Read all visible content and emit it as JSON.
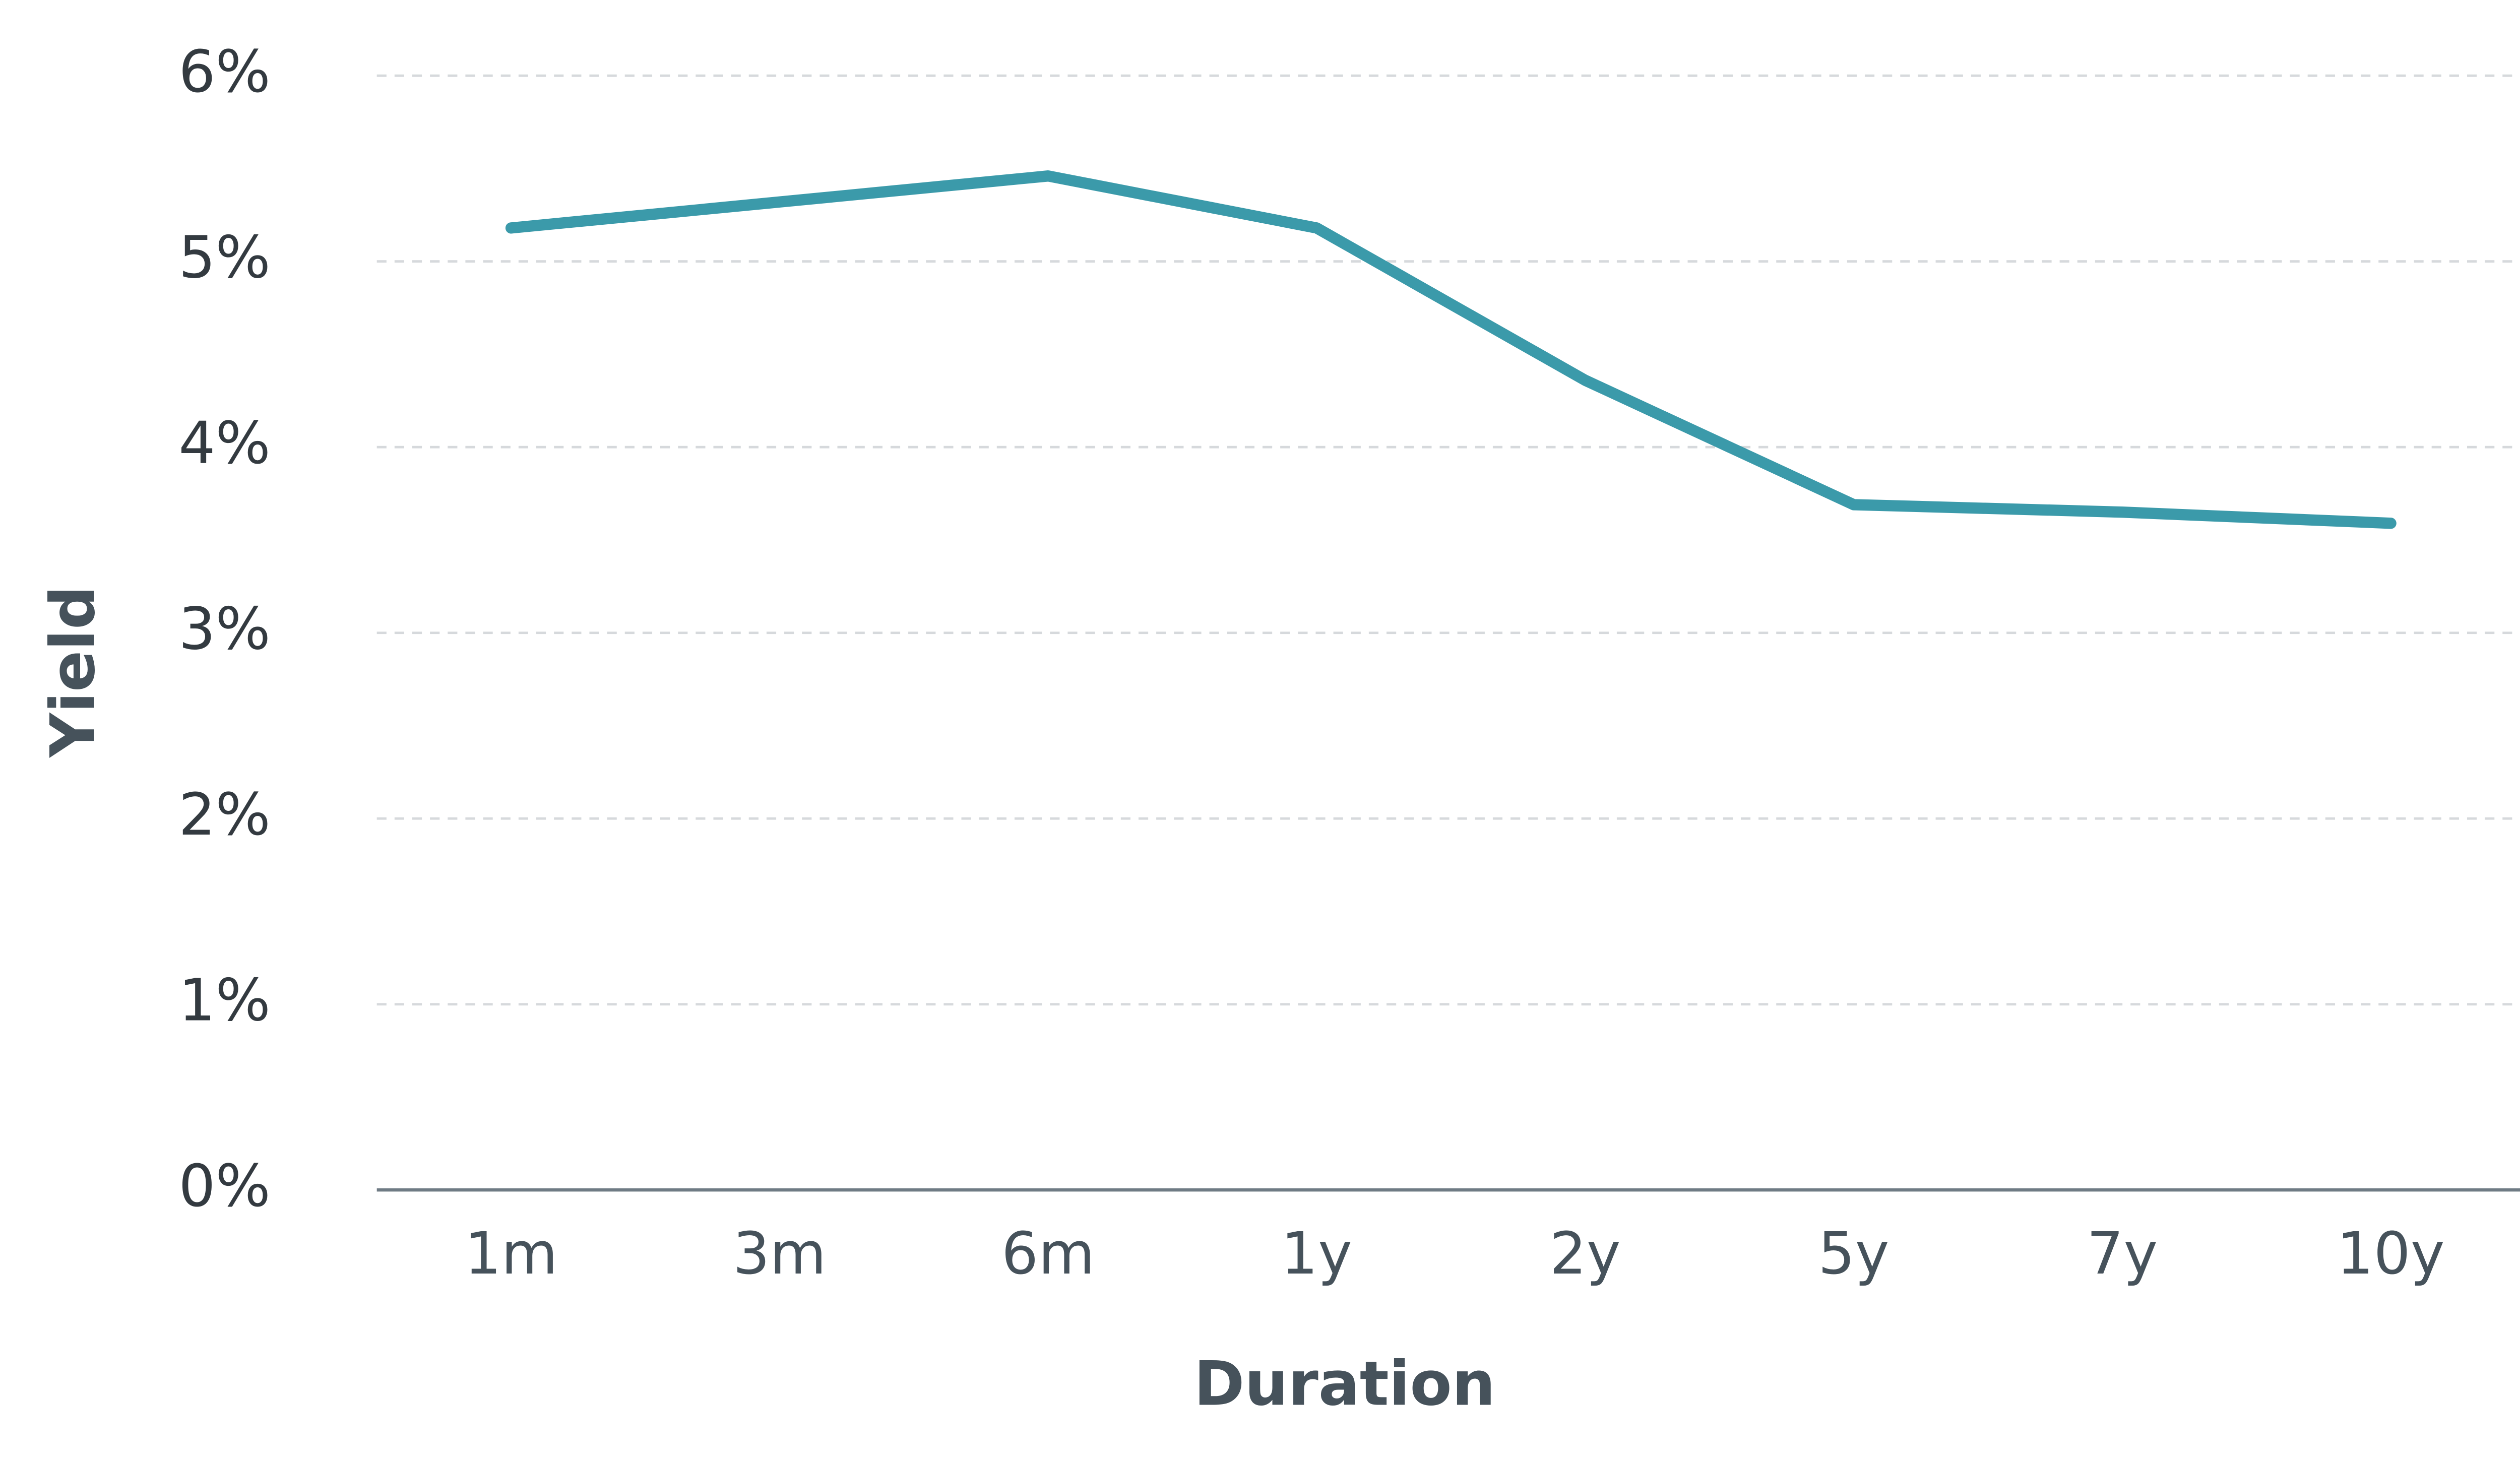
{
  "chart_data": {
    "type": "line",
    "x_label": "Duration",
    "y_label": "Yield",
    "categories": [
      "1m",
      "3m",
      "6m",
      "1y",
      "2y",
      "5y",
      "7y",
      "10y"
    ],
    "series": [
      {
        "color": "#3b9aaa",
        "values": [
          5.18,
          5.32,
          5.46,
          5.18,
          4.36,
          3.69,
          3.65,
          3.59
        ]
      }
    ],
    "ylim": [
      0,
      6
    ],
    "yticks": [
      {
        "value": 0,
        "label": "0%"
      },
      {
        "value": 1,
        "label": "1%"
      },
      {
        "value": 2,
        "label": "2%"
      },
      {
        "value": 3,
        "label": "3%"
      },
      {
        "value": 4,
        "label": "4%"
      },
      {
        "value": 5,
        "label": "5%"
      },
      {
        "value": 6,
        "label": "6%"
      }
    ],
    "grid": true
  }
}
